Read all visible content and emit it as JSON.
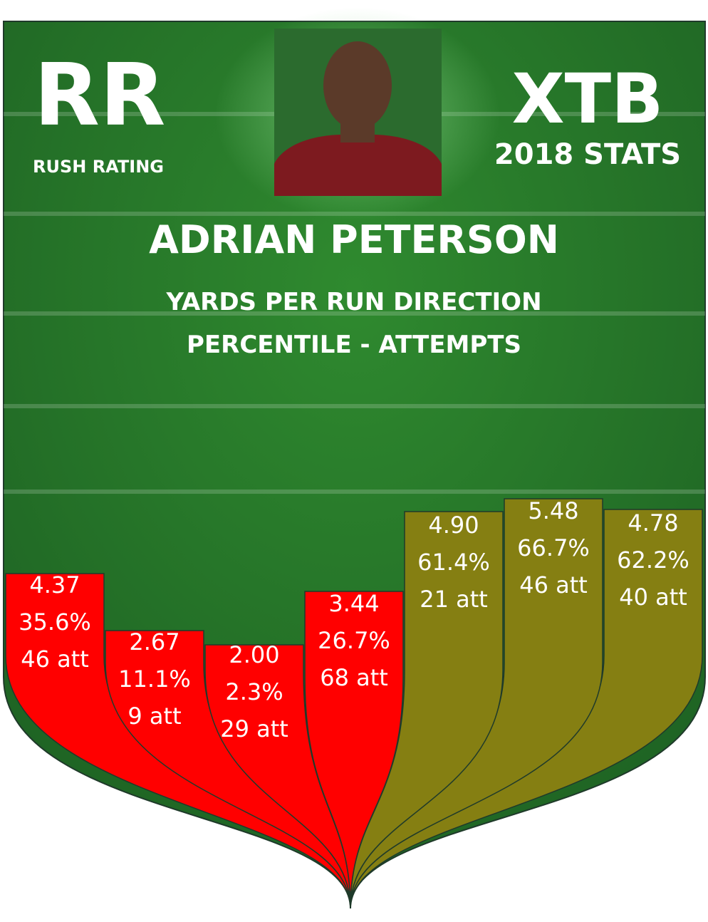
{
  "header": {
    "logo_left": "RR",
    "logo_left_caption": "RUSH RATING",
    "logo_right": "XTB",
    "logo_right_caption": "2018 STATS"
  },
  "title": "ADRIAN PETERSON",
  "subtitle": [
    "YARDS PER RUN DIRECTION",
    "PERCENTILE - ATTEMPTS"
  ],
  "columns": [
    {
      "ypc": "4.37",
      "percentile": "35.6%",
      "attempts": "46 att",
      "color": "#ff0000"
    },
    {
      "ypc": "2.67",
      "percentile": "11.1%",
      "attempts": "9 att",
      "color": "#ff0000"
    },
    {
      "ypc": "2.00",
      "percentile": "2.3%",
      "attempts": "29 att",
      "color": "#ff0000"
    },
    {
      "ypc": "3.44",
      "percentile": "26.7%",
      "attempts": "68 att",
      "color": "#ff0000"
    },
    {
      "ypc": "4.90",
      "percentile": "61.4%",
      "attempts": "21 att",
      "color": "#857f12"
    },
    {
      "ypc": "5.48",
      "percentile": "66.7%",
      "attempts": "46 att",
      "color": "#857f12"
    },
    {
      "ypc": "4.78",
      "percentile": "62.2%",
      "attempts": "40 att",
      "color": "#857f12"
    }
  ]
}
